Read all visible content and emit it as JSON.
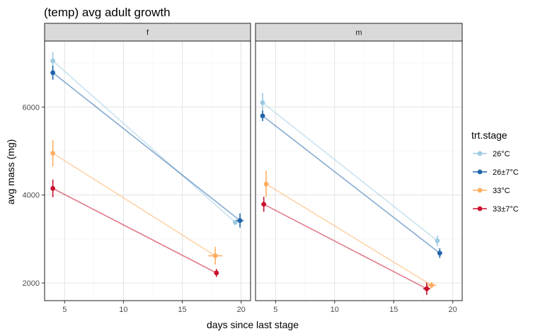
{
  "chart_data": {
    "type": "line",
    "title": "(temp) avg adult growth",
    "xlabel": "days since last stage",
    "ylabel": "avg mass (mg)",
    "xlim": [
      3.3,
      20.8
    ],
    "ylim": [
      1600,
      7500
    ],
    "x_ticks": [
      5,
      10,
      15,
      20
    ],
    "y_ticks": [
      2000,
      4000,
      6000
    ],
    "x_tick_labels": [
      "5",
      "10",
      "15",
      "20"
    ],
    "y_tick_labels": [
      "2000",
      "4000",
      "6000"
    ],
    "grid": true,
    "legend": {
      "title": "trt.stage",
      "placement": "right",
      "labels": [
        "26°C",
        "26±7°C",
        "33°C",
        "33±7°C"
      ]
    },
    "colors": [
      "#9ecae1",
      "#2166ac",
      "#fdae61",
      "#c8102e"
    ],
    "facets": [
      {
        "label": "f",
        "series": [
          {
            "name": "26°C",
            "points": [
              {
                "x": 4.0,
                "y": 7050,
                "ylo": 6850,
                "yhi": 7250,
                "xlo": 4.0,
                "xhi": 4.0
              },
              {
                "x": 19.5,
                "y": 3380,
                "ylo": 3320,
                "yhi": 3440,
                "xlo": 19.3,
                "xhi": 19.7
              }
            ]
          },
          {
            "name": "26±7°C",
            "points": [
              {
                "x": 4.0,
                "y": 6780,
                "ylo": 6620,
                "yhi": 6940,
                "xlo": 4.0,
                "xhi": 4.0
              },
              {
                "x": 19.9,
                "y": 3420,
                "ylo": 3260,
                "yhi": 3580,
                "xlo": 19.6,
                "xhi": 20.2
              }
            ]
          },
          {
            "name": "33°C",
            "points": [
              {
                "x": 4.0,
                "y": 4950,
                "ylo": 4650,
                "yhi": 5250,
                "xlo": 4.0,
                "xhi": 4.0
              },
              {
                "x": 17.8,
                "y": 2620,
                "ylo": 2420,
                "yhi": 2820,
                "xlo": 17.2,
                "xhi": 18.4
              }
            ]
          },
          {
            "name": "33±7°C",
            "points": [
              {
                "x": 4.0,
                "y": 4150,
                "ylo": 3950,
                "yhi": 4350,
                "xlo": 4.0,
                "xhi": 4.0
              },
              {
                "x": 17.9,
                "y": 2230,
                "ylo": 2140,
                "yhi": 2320,
                "xlo": 17.8,
                "xhi": 18.0
              }
            ]
          }
        ]
      },
      {
        "label": "m",
        "series": [
          {
            "name": "26°C",
            "points": [
              {
                "x": 3.9,
                "y": 6100,
                "ylo": 5880,
                "yhi": 6320,
                "xlo": 3.9,
                "xhi": 3.9
              },
              {
                "x": 18.7,
                "y": 2960,
                "ylo": 2840,
                "yhi": 3080,
                "xlo": 18.5,
                "xhi": 18.9
              }
            ]
          },
          {
            "name": "26±7°C",
            "points": [
              {
                "x": 3.9,
                "y": 5800,
                "ylo": 5680,
                "yhi": 5920,
                "xlo": 3.9,
                "xhi": 3.9
              },
              {
                "x": 18.9,
                "y": 2680,
                "ylo": 2570,
                "yhi": 2790,
                "xlo": 18.7,
                "xhi": 19.1
              }
            ]
          },
          {
            "name": "33°C",
            "points": [
              {
                "x": 4.2,
                "y": 4250,
                "ylo": 3950,
                "yhi": 4550,
                "xlo": 4.2,
                "xhi": 4.2
              },
              {
                "x": 18.2,
                "y": 1950,
                "ylo": 1880,
                "yhi": 2020,
                "xlo": 17.8,
                "xhi": 18.6
              }
            ]
          },
          {
            "name": "33±7°C",
            "points": [
              {
                "x": 4.0,
                "y": 3790,
                "ylo": 3620,
                "yhi": 3960,
                "xlo": 4.0,
                "xhi": 4.0
              },
              {
                "x": 17.8,
                "y": 1870,
                "ylo": 1730,
                "yhi": 2010,
                "xlo": 17.5,
                "xhi": 18.1
              }
            ]
          }
        ]
      }
    ]
  }
}
